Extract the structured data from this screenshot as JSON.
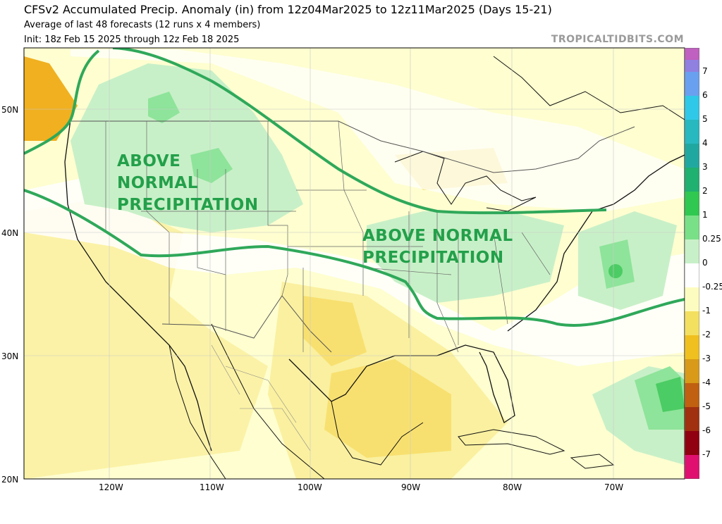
{
  "header": {
    "title": "CFSv2 Accumulated Precip. Anomaly (in) from 12z04Mar2025 to 12z11Mar2025 (Days 15-21)",
    "subtitle1": "Average of last 48 forecasts (12 runs x 4 members)",
    "subtitle2": "Init: 18z Feb 15 2025 through 12z Feb 18 2025",
    "brand": "TROPICALTIDBITS.COM"
  },
  "annotations": {
    "west": [
      "ABOVE",
      "NORMAL",
      "PRECIPITATION"
    ],
    "east": [
      "ABOVE NORMAL",
      "PRECIPITATION"
    ],
    "contour_color": "#2fa85a",
    "text_color": "#23a04a"
  },
  "axes": {
    "lat_labels": [
      "50N",
      "40N",
      "30N",
      "20N"
    ],
    "lon_labels": [
      "120W",
      "110W",
      "100W",
      "90W",
      "80W",
      "70W"
    ]
  },
  "colorbar": {
    "labels": [
      "7",
      "6",
      "5",
      "4",
      "3",
      "2",
      "1",
      "0.25",
      "0",
      "-0.25",
      "-1",
      "-2",
      "-3",
      "-4",
      "-5",
      "-6",
      "-7"
    ],
    "colors": {
      "top": "#c060c0",
      "blue_top": "#7070e0",
      "cyan": "#30c8e8",
      "teal": "#20a8a0",
      "green_dark": "#20b040",
      "green_light": "#b0f0b0",
      "white": "#ffffff",
      "yellow_light": "#fdfcc0",
      "yellow": "#f0c020",
      "orange": "#c88010",
      "brown": "#a04010",
      "dark_red": "#900010",
      "magenta": "#e01070"
    }
  },
  "map_colors": {
    "background": "#fefed0",
    "light_green": "#c8f0c8",
    "mid_green": "#8ee49a",
    "dark_green": "#4ccc64",
    "yellow": "#faf0a0",
    "deep_yellow": "#f8e070",
    "orange": "#f0b020",
    "white": "#ffffff",
    "coast": "#111111",
    "border": "#888888"
  }
}
